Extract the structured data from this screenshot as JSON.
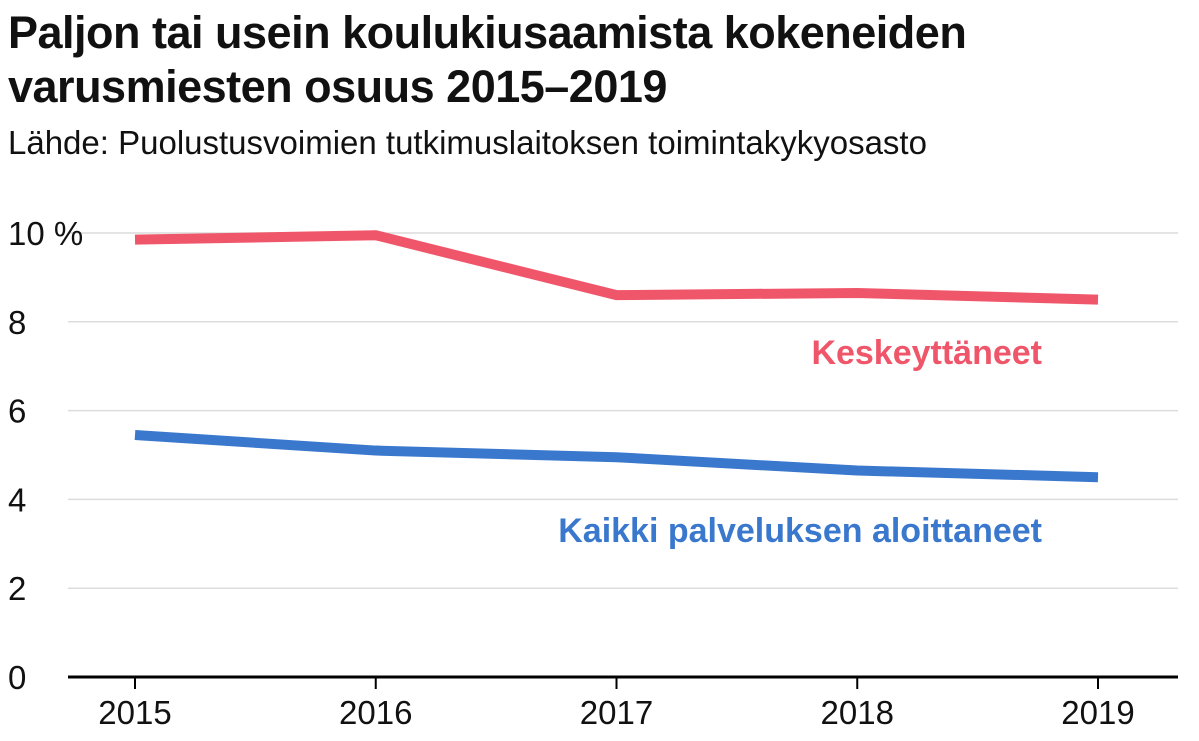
{
  "chart_data": {
    "type": "line",
    "title": "Paljon tai usein koulukiusaamista kokeneiden varusmiesten osuus 2015–2019",
    "subtitle": "Lähde:  Puolustusvoimien tutkimuslaitoksen toimintakykyosasto",
    "categories": [
      "2015",
      "2016",
      "2017",
      "2018",
      "2019"
    ],
    "y_ticks": [
      0,
      2,
      4,
      6,
      8,
      10
    ],
    "y_top_tick_label": "10 %",
    "ylim": [
      0,
      10
    ],
    "grid": true,
    "series": [
      {
        "name": "Keskeyttäneet",
        "color": "#f0566a",
        "values": [
          9.85,
          9.95,
          8.6,
          8.65,
          8.5
        ]
      },
      {
        "name": "Kaikki palveluksen aloittaneet",
        "color": "#3a78cd",
        "values": [
          5.45,
          5.1,
          4.95,
          4.65,
          4.5
        ]
      }
    ]
  }
}
